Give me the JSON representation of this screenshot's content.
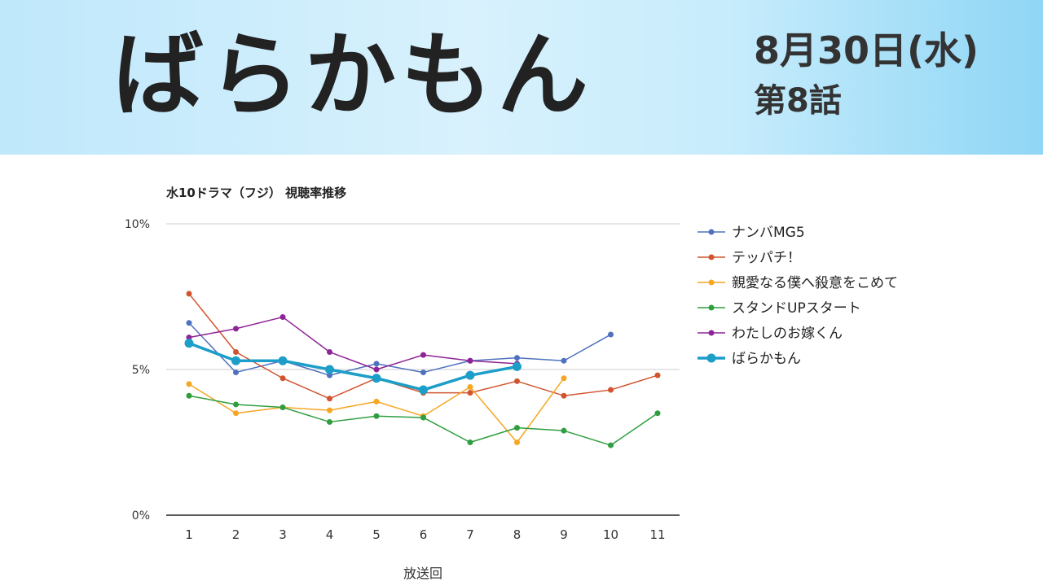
{
  "header": {
    "show_title": "ばらかもん",
    "broadcast_date": "8月30日(水)",
    "episode": "第8話"
  },
  "chart_data": {
    "type": "line",
    "title": "水10ドラマ（フジ） 視聴率推移",
    "xlabel": "放送回",
    "ylabel": "",
    "categories": [
      "1",
      "2",
      "3",
      "4",
      "5",
      "6",
      "7",
      "8",
      "9",
      "10",
      "11"
    ],
    "y_ticks": [
      "10%",
      "5%",
      "0%"
    ],
    "ylim": [
      0,
      10
    ],
    "grid": true,
    "legend_position": "right",
    "series": [
      {
        "name": "ナンバMG5",
        "color": "#4f72be",
        "values": [
          6.6,
          4.9,
          5.3,
          4.8,
          5.2,
          4.9,
          5.3,
          5.4,
          5.3,
          6.2,
          null
        ]
      },
      {
        "name": "テッパチ！",
        "color": "#d2542f",
        "values": [
          7.6,
          5.6,
          4.7,
          4.0,
          4.7,
          4.2,
          4.2,
          4.6,
          4.1,
          4.3,
          4.8
        ]
      },
      {
        "name": "親愛なる僕へ殺意をこめて",
        "color": "#f5a623",
        "values": [
          4.5,
          3.5,
          3.7,
          3.6,
          3.9,
          3.4,
          4.4,
          2.5,
          4.7,
          null,
          null
        ]
      },
      {
        "name": "スタンドUPスタート",
        "color": "#2f9e3f",
        "values": [
          4.1,
          3.8,
          3.7,
          3.2,
          3.4,
          3.35,
          2.5,
          3.0,
          2.9,
          2.4,
          3.5
        ]
      },
      {
        "name": "わたしのお嫁くん",
        "color": "#8e2496",
        "values": [
          6.1,
          6.4,
          6.8,
          5.6,
          5.0,
          5.5,
          5.3,
          5.2,
          null,
          null,
          null
        ]
      },
      {
        "name": "ばらかもん",
        "color": "#1c9ec9",
        "emphasis": true,
        "values": [
          5.9,
          5.3,
          5.3,
          5.0,
          4.7,
          4.3,
          4.8,
          5.1,
          null,
          null,
          null
        ]
      }
    ]
  }
}
